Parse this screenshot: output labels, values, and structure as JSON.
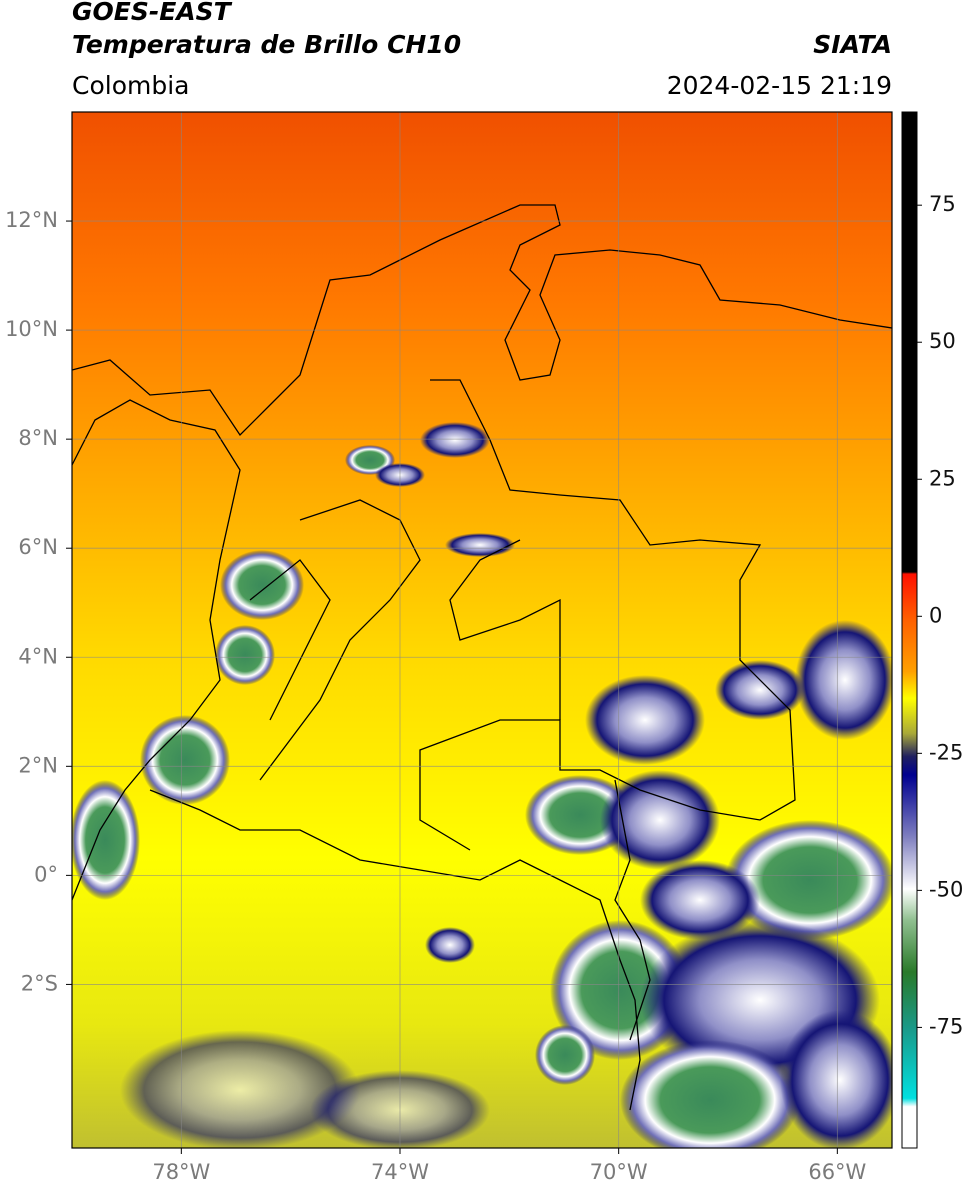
{
  "header": {
    "title": "GOES-EAST",
    "subtitle": "Temperatura de Brillo CH10",
    "region": "Colombia",
    "source": "SIATA",
    "datetime": "2024-02-15 21:19"
  },
  "map": {
    "xlim": [
      -80,
      -65
    ],
    "ylim": [
      -5,
      14
    ],
    "grid": true,
    "xticks": [
      {
        "value": -78,
        "label": "78°W"
      },
      {
        "value": -74,
        "label": "74°W"
      },
      {
        "value": -70,
        "label": "70°W"
      },
      {
        "value": -66,
        "label": "66°W"
      }
    ],
    "yticks": [
      {
        "value": 12,
        "label": "12°N"
      },
      {
        "value": 10,
        "label": "10°N"
      },
      {
        "value": 8,
        "label": "8°N"
      },
      {
        "value": 6,
        "label": "6°N"
      },
      {
        "value": 4,
        "label": "4°N"
      },
      {
        "value": 2,
        "label": "2°N"
      },
      {
        "value": 0,
        "label": "0°"
      },
      {
        "value": -2,
        "label": "2°S"
      }
    ]
  },
  "colorbar": {
    "lim": [
      -97,
      92
    ],
    "ticks": [
      75,
      50,
      25,
      0,
      -25,
      -50,
      -75
    ]
  }
}
